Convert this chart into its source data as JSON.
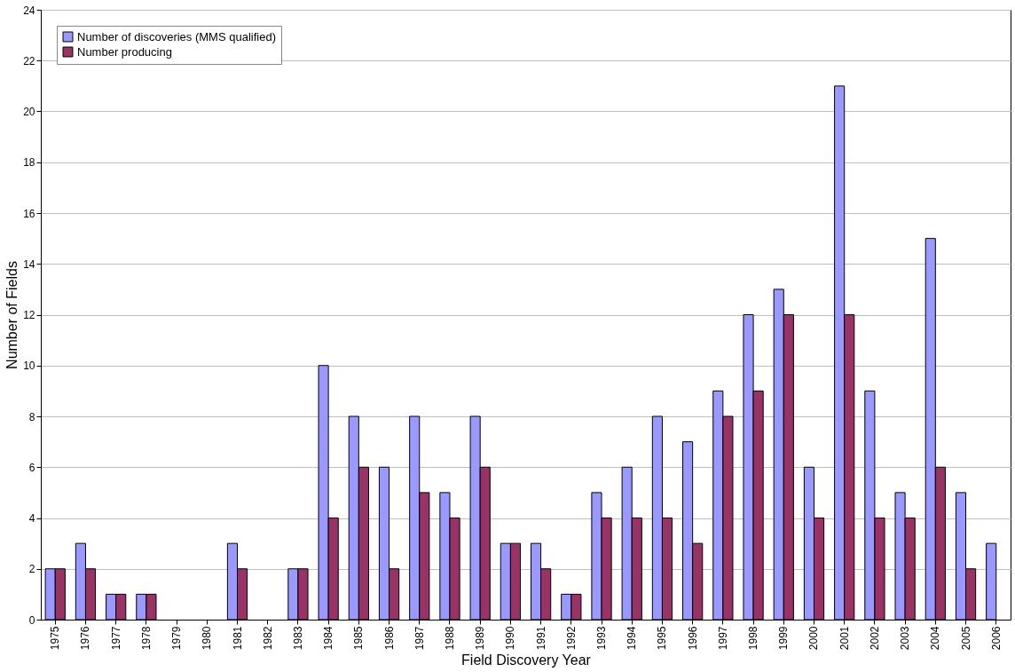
{
  "chart_data": {
    "type": "bar",
    "xlabel": "Field Discovery Year",
    "ylabel": "Number of Fields",
    "categories": [
      "1975",
      "1976",
      "1977",
      "1978",
      "1979",
      "1980",
      "1981",
      "1982",
      "1983",
      "1984",
      "1985",
      "1986",
      "1987",
      "1988",
      "1989",
      "1990",
      "1991",
      "1992",
      "1993",
      "1994",
      "1995",
      "1996",
      "1997",
      "1998",
      "1999",
      "2000",
      "2001",
      "2002",
      "2003",
      "2004",
      "2005",
      "2006"
    ],
    "series": [
      {
        "name": "Number of discoveries (MMS qualified)",
        "color": "#9999ff",
        "values": [
          2,
          3,
          1,
          1,
          0,
          0,
          3,
          0,
          2,
          10,
          8,
          6,
          8,
          5,
          8,
          3,
          3,
          1,
          5,
          6,
          8,
          7,
          9,
          12,
          13,
          6,
          21,
          9,
          5,
          15,
          5,
          3
        ]
      },
      {
        "name": "Number producing",
        "color": "#993366",
        "values": [
          2,
          2,
          1,
          1,
          0,
          0,
          2,
          0,
          2,
          4,
          6,
          2,
          5,
          4,
          6,
          3,
          2,
          1,
          4,
          4,
          4,
          3,
          8,
          9,
          12,
          4,
          12,
          4,
          4,
          6,
          2,
          0
        ]
      }
    ],
    "ylim": [
      0,
      24
    ],
    "yticks": [
      0,
      2,
      4,
      6,
      8,
      10,
      12,
      14,
      16,
      18,
      20,
      22,
      24
    ],
    "grid": "y",
    "legend": "top left"
  }
}
